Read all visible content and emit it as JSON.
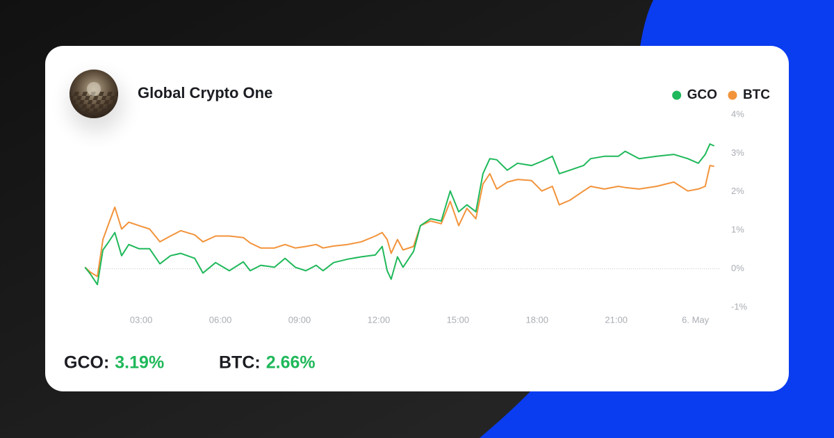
{
  "title": "Global Crypto One",
  "chart_data": {
    "type": "line",
    "x": [
      0.87,
      1.08,
      1.34,
      1.55,
      1.74,
      2.0,
      2.26,
      2.53,
      2.92,
      3.32,
      3.71,
      4.11,
      4.5,
      5.03,
      5.34,
      5.82,
      6.34,
      6.87,
      7.13,
      7.53,
      8.05,
      8.45,
      8.84,
      9.24,
      9.63,
      9.89,
      10.29,
      10.82,
      11.34,
      11.87,
      12.13,
      12.32,
      12.47,
      12.71,
      12.92,
      13.32,
      13.58,
      13.97,
      14.37,
      14.71,
      15.03,
      15.34,
      15.68,
      15.95,
      16.21,
      16.47,
      16.87,
      17.26,
      17.79,
      18.18,
      18.58,
      18.84,
      19.24,
      19.76,
      20.03,
      20.55,
      21.08,
      21.34,
      21.87,
      22.53,
      23.18,
      23.71,
      24.11,
      24.37,
      24.55,
      24.71
    ],
    "series": [
      {
        "name": "GCO",
        "color": "#1fb85a",
        "values": [
          0.04,
          -0.14,
          -0.41,
          0.49,
          0.67,
          0.94,
          0.34,
          0.63,
          0.52,
          0.52,
          0.13,
          0.34,
          0.4,
          0.27,
          -0.11,
          0.16,
          -0.05,
          0.18,
          -0.05,
          0.09,
          0.04,
          0.27,
          0.04,
          -0.05,
          0.09,
          -0.05,
          0.16,
          0.25,
          0.31,
          0.36,
          0.58,
          -0.05,
          -0.27,
          0.31,
          0.04,
          0.45,
          1.12,
          1.3,
          1.24,
          2.02,
          1.48,
          1.66,
          1.48,
          2.47,
          2.86,
          2.83,
          2.56,
          2.74,
          2.68,
          2.79,
          2.92,
          2.47,
          2.56,
          2.68,
          2.86,
          2.92,
          2.92,
          3.05,
          2.86,
          2.92,
          2.97,
          2.86,
          2.74,
          2.97,
          3.24,
          3.19
        ]
      },
      {
        "name": "BTC",
        "color": "#f2933a",
        "values": [
          0.04,
          -0.09,
          -0.2,
          0.76,
          1.12,
          1.6,
          1.03,
          1.21,
          1.12,
          1.03,
          0.7,
          0.85,
          0.99,
          0.88,
          0.7,
          0.85,
          0.85,
          0.81,
          0.67,
          0.54,
          0.54,
          0.63,
          0.54,
          0.58,
          0.63,
          0.54,
          0.59,
          0.63,
          0.7,
          0.85,
          0.94,
          0.76,
          0.4,
          0.76,
          0.49,
          0.58,
          1.12,
          1.24,
          1.17,
          1.75,
          1.12,
          1.57,
          1.3,
          2.2,
          2.47,
          2.07,
          2.25,
          2.32,
          2.29,
          2.02,
          2.14,
          1.66,
          1.78,
          2.02,
          2.14,
          2.07,
          2.14,
          2.11,
          2.07,
          2.14,
          2.25,
          2.02,
          2.07,
          2.14,
          2.68,
          2.66
        ]
      }
    ],
    "xlim": [
      0.6,
      24.8
    ],
    "xticks": [
      {
        "value": 3,
        "label": "03:00"
      },
      {
        "value": 6,
        "label": "06:00"
      },
      {
        "value": 9,
        "label": "09:00"
      },
      {
        "value": 12,
        "label": "12:00"
      },
      {
        "value": 15,
        "label": "15:00"
      },
      {
        "value": 18,
        "label": "18:00"
      },
      {
        "value": 21,
        "label": "21:00"
      },
      {
        "value": 24,
        "label": "6. May"
      }
    ],
    "ylim": [
      -1,
      4
    ],
    "yticks": [
      {
        "value": -1,
        "label": "-1%"
      },
      {
        "value": 0,
        "label": "0%"
      },
      {
        "value": 1,
        "label": "1%"
      },
      {
        "value": 2,
        "label": "2%"
      },
      {
        "value": 3,
        "label": "3%"
      },
      {
        "value": 4,
        "label": "4%"
      }
    ],
    "zero_line": true,
    "legend": "top-right"
  },
  "summary": [
    {
      "label": "GCO:",
      "value": "3.19%"
    },
    {
      "label": "BTC:",
      "value": "2.66%"
    }
  ]
}
